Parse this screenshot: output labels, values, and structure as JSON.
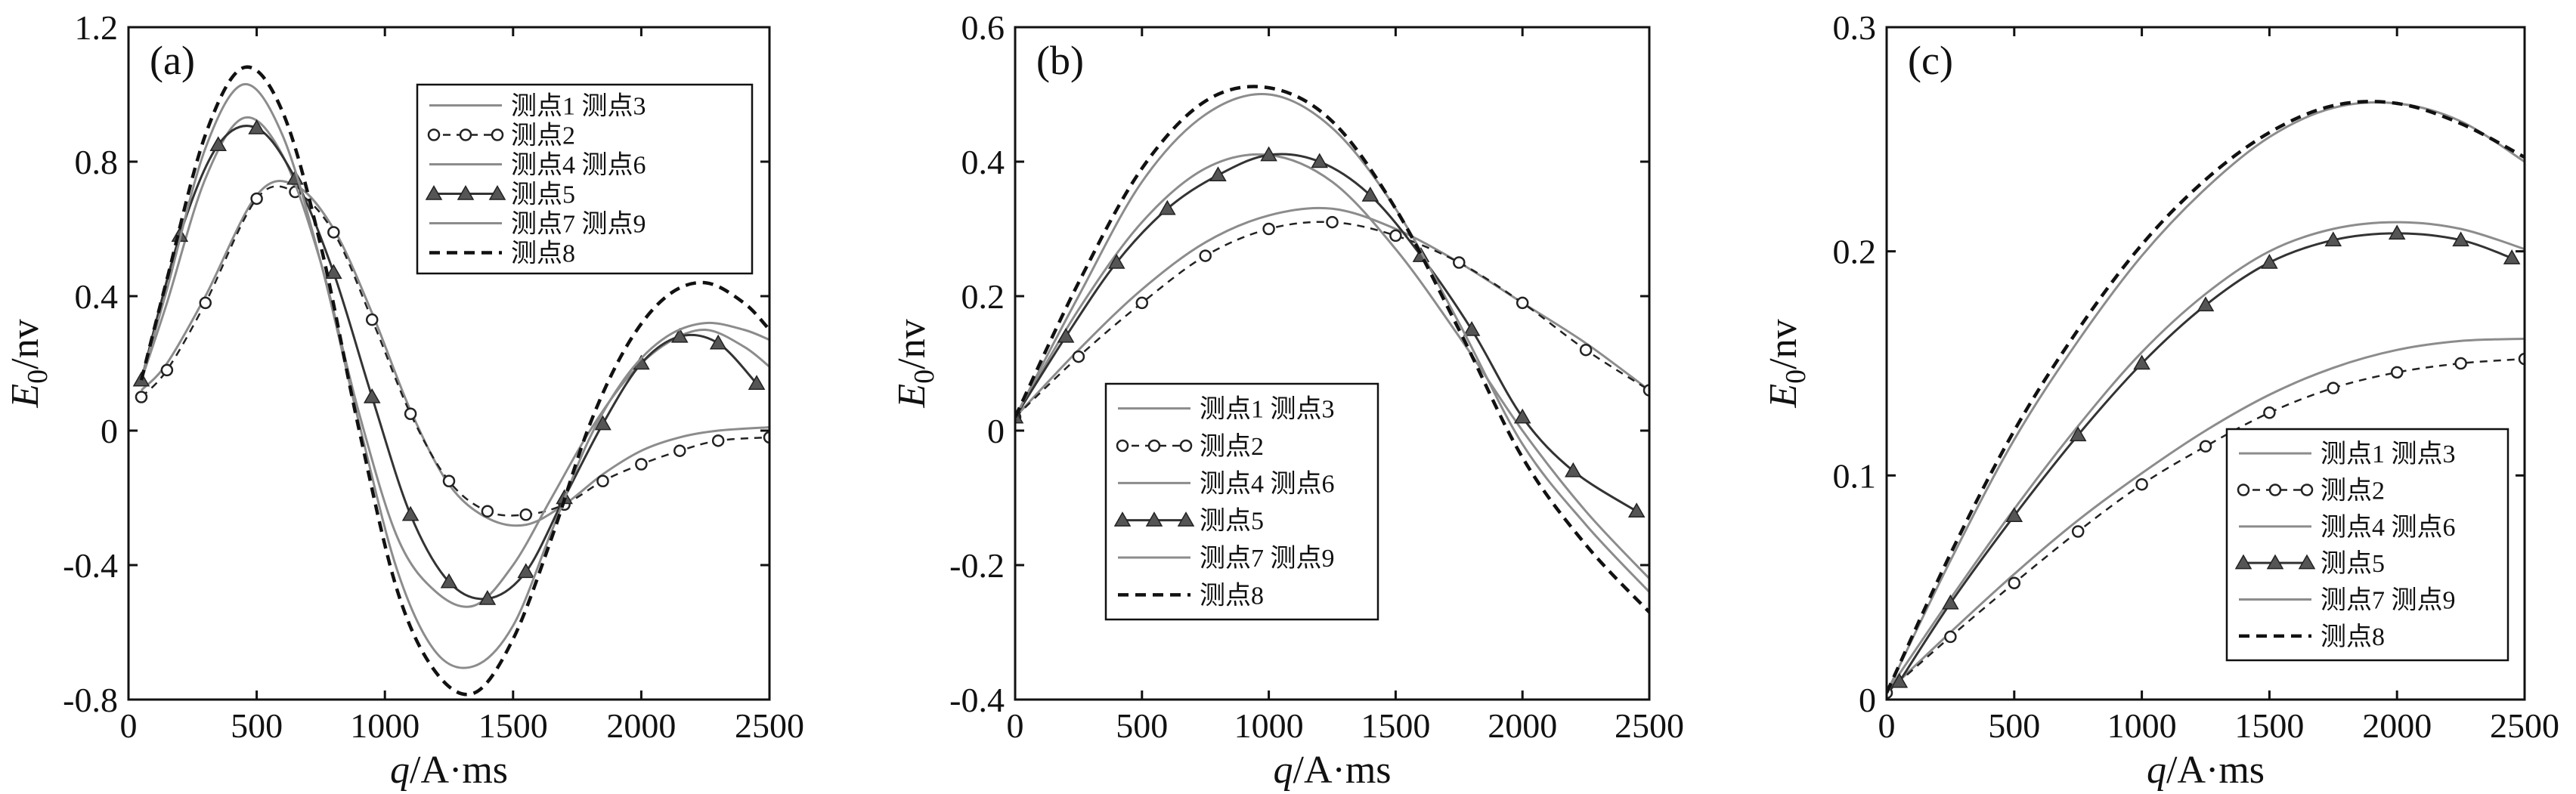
{
  "chart_data": [
    {
      "panel": "(a)",
      "type": "line",
      "xlabel": "q/A·ms",
      "ylabel": "E0/nv",
      "xlim": [
        0,
        2500
      ],
      "ylim": [
        -0.8,
        1.2
      ],
      "xticks": [
        "0",
        "500",
        "1000",
        "1500",
        "2000",
        "2500"
      ],
      "yticks": [
        "-0.8",
        "-0.4",
        "0",
        "0.4",
        "0.8",
        "1.2"
      ],
      "legend_position": "top-right",
      "series": [
        {
          "name": "测点1 测点3",
          "style": "solid-gray",
          "x": [
            50,
            150,
            300,
            500,
            650,
            800,
            950,
            1100,
            1250,
            1400,
            1550,
            1700,
            1850,
            2000,
            2150,
            2300,
            2500
          ],
          "y": [
            0.12,
            0.2,
            0.4,
            0.7,
            0.73,
            0.6,
            0.35,
            0.06,
            -0.16,
            -0.26,
            -0.28,
            -0.22,
            -0.13,
            -0.06,
            -0.02,
            0.0,
            0.01
          ]
        },
        {
          "name": "测点2",
          "style": "dashed-circles",
          "x": [
            50,
            150,
            300,
            500,
            650,
            800,
            950,
            1100,
            1250,
            1400,
            1550,
            1700,
            1850,
            2000,
            2150,
            2300,
            2500
          ],
          "y": [
            0.1,
            0.18,
            0.38,
            0.69,
            0.71,
            0.59,
            0.33,
            0.05,
            -0.15,
            -0.24,
            -0.25,
            -0.22,
            -0.15,
            -0.1,
            -0.06,
            -0.03,
            -0.02
          ]
        },
        {
          "name": "测点4 测点6",
          "style": "solid-gray",
          "x": [
            50,
            150,
            300,
            450,
            600,
            750,
            900,
            1050,
            1200,
            1350,
            1500,
            1650,
            1800,
            1950,
            2100,
            2250,
            2400,
            2500
          ],
          "y": [
            0.15,
            0.38,
            0.75,
            0.93,
            0.82,
            0.5,
            0.05,
            -0.32,
            -0.48,
            -0.52,
            -0.4,
            -0.2,
            0.0,
            0.16,
            0.26,
            0.3,
            0.25,
            0.19
          ]
        },
        {
          "name": "测点5",
          "style": "solid-triangles",
          "x": [
            50,
            200,
            350,
            500,
            650,
            800,
            950,
            1100,
            1250,
            1400,
            1550,
            1700,
            1850,
            2000,
            2150,
            2300,
            2450
          ],
          "y": [
            0.15,
            0.58,
            0.85,
            0.9,
            0.75,
            0.47,
            0.1,
            -0.25,
            -0.45,
            -0.5,
            -0.42,
            -0.2,
            0.02,
            0.2,
            0.28,
            0.26,
            0.14
          ]
        },
        {
          "name": "测点7 测点9",
          "style": "solid-gray",
          "x": [
            50,
            150,
            300,
            450,
            600,
            750,
            900,
            1050,
            1200,
            1350,
            1500,
            1650,
            1800,
            1950,
            2100,
            2250,
            2400,
            2500
          ],
          "y": [
            0.15,
            0.42,
            0.84,
            1.03,
            0.88,
            0.5,
            0.02,
            -0.42,
            -0.66,
            -0.7,
            -0.58,
            -0.3,
            -0.02,
            0.17,
            0.28,
            0.32,
            0.3,
            0.27
          ]
        },
        {
          "name": "测点8",
          "style": "dashed-black",
          "x": [
            50,
            150,
            300,
            450,
            600,
            750,
            900,
            1050,
            1200,
            1350,
            1500,
            1650,
            1800,
            1950,
            2100,
            2250,
            2400,
            2500
          ],
          "y": [
            0.15,
            0.45,
            0.88,
            1.08,
            0.95,
            0.55,
            0.0,
            -0.48,
            -0.72,
            -0.78,
            -0.62,
            -0.32,
            0.02,
            0.26,
            0.4,
            0.44,
            0.38,
            0.3
          ]
        }
      ]
    },
    {
      "panel": "(b)",
      "type": "line",
      "xlabel": "q/A·ms",
      "ylabel": "E0/nv",
      "xlim": [
        0,
        2500
      ],
      "ylim": [
        -0.4,
        0.6
      ],
      "xticks": [
        "0",
        "500",
        "1000",
        "1500",
        "2000",
        "2500"
      ],
      "yticks": [
        "-0.4",
        "-0.2",
        "0",
        "0.2",
        "0.4",
        "0.6"
      ],
      "legend_position": "bottom-center",
      "series": [
        {
          "name": "测点1 测点3",
          "style": "solid-gray",
          "x": [
            0,
            250,
            500,
            750,
            1000,
            1250,
            1500,
            1750,
            2000,
            2250,
            2500
          ],
          "y": [
            0.02,
            0.12,
            0.21,
            0.28,
            0.32,
            0.33,
            0.3,
            0.25,
            0.19,
            0.13,
            0.06
          ]
        },
        {
          "name": "测点2",
          "style": "dashed-circles",
          "x": [
            0,
            250,
            500,
            750,
            1000,
            1250,
            1500,
            1750,
            2000,
            2250,
            2500
          ],
          "y": [
            0.02,
            0.11,
            0.19,
            0.26,
            0.3,
            0.31,
            0.29,
            0.25,
            0.19,
            0.12,
            0.06
          ]
        },
        {
          "name": "测点4 测点6",
          "style": "solid-gray",
          "x": [
            0,
            250,
            500,
            750,
            1000,
            1250,
            1500,
            1750,
            2000,
            2250,
            2500
          ],
          "y": [
            0.02,
            0.18,
            0.31,
            0.39,
            0.41,
            0.37,
            0.27,
            0.14,
            0.0,
            -0.12,
            -0.22
          ]
        },
        {
          "name": "测点5",
          "style": "solid-triangles",
          "x": [
            0,
            200,
            400,
            600,
            800,
            1000,
            1200,
            1400,
            1600,
            1800,
            2000,
            2200,
            2450
          ],
          "y": [
            0.02,
            0.14,
            0.25,
            0.33,
            0.38,
            0.41,
            0.4,
            0.35,
            0.26,
            0.15,
            0.02,
            -0.06,
            -0.12
          ]
        },
        {
          "name": "测点7 测点9",
          "style": "solid-gray",
          "x": [
            0,
            250,
            500,
            750,
            1000,
            1250,
            1500,
            1750,
            2000,
            2250,
            2500
          ],
          "y": [
            0.02,
            0.2,
            0.37,
            0.47,
            0.5,
            0.45,
            0.33,
            0.16,
            -0.02,
            -0.14,
            -0.24
          ]
        },
        {
          "name": "测点8",
          "style": "dashed-black",
          "x": [
            0,
            250,
            500,
            750,
            1000,
            1250,
            1500,
            1750,
            2000,
            2250,
            2500
          ],
          "y": [
            0.02,
            0.22,
            0.39,
            0.49,
            0.51,
            0.46,
            0.33,
            0.15,
            -0.04,
            -0.17,
            -0.27
          ]
        }
      ]
    },
    {
      "panel": "(c)",
      "type": "line",
      "xlabel": "q/A·ms",
      "ylabel": "E0/nv",
      "xlim": [
        0,
        2500
      ],
      "ylim": [
        0,
        0.3
      ],
      "xticks": [
        "0",
        "500",
        "1000",
        "1500",
        "2000",
        "2500"
      ],
      "yticks": [
        "0",
        "0.1",
        "0.2",
        "0.3"
      ],
      "legend_position": "bottom-right",
      "series": [
        {
          "name": "测点1 测点3",
          "style": "solid-gray",
          "x": [
            0,
            250,
            500,
            750,
            1000,
            1250,
            1500,
            1750,
            2000,
            2250,
            2500
          ],
          "y": [
            0.003,
            0.03,
            0.056,
            0.08,
            0.101,
            0.12,
            0.136,
            0.148,
            0.156,
            0.16,
            0.161
          ]
        },
        {
          "name": "测点2",
          "style": "dashed-circles",
          "x": [
            0,
            250,
            500,
            750,
            1000,
            1250,
            1500,
            1750,
            2000,
            2250,
            2500
          ],
          "y": [
            0.003,
            0.028,
            0.052,
            0.075,
            0.096,
            0.113,
            0.128,
            0.139,
            0.146,
            0.15,
            0.152
          ]
        },
        {
          "name": "测点4 测点6",
          "style": "solid-gray",
          "x": [
            0,
            250,
            500,
            750,
            1000,
            1250,
            1500,
            1750,
            2000,
            2250,
            2500
          ],
          "y": [
            0.003,
            0.045,
            0.085,
            0.122,
            0.155,
            0.181,
            0.2,
            0.21,
            0.213,
            0.21,
            0.201
          ]
        },
        {
          "name": "测点5",
          "style": "solid-triangles",
          "x": [
            50,
            250,
            500,
            750,
            1000,
            1250,
            1500,
            1750,
            2000,
            2250,
            2450
          ],
          "y": [
            0.008,
            0.043,
            0.082,
            0.118,
            0.15,
            0.176,
            0.195,
            0.205,
            0.208,
            0.205,
            0.197
          ]
        },
        {
          "name": "测点7 测点9",
          "style": "solid-gray",
          "x": [
            0,
            250,
            500,
            750,
            1000,
            1250,
            1500,
            1750,
            2000,
            2250,
            2500
          ],
          "y": [
            0.003,
            0.062,
            0.116,
            0.16,
            0.198,
            0.228,
            0.251,
            0.264,
            0.266,
            0.258,
            0.24
          ]
        },
        {
          "name": "测点8",
          "style": "dashed-black",
          "x": [
            0,
            250,
            500,
            750,
            1000,
            1250,
            1500,
            1750,
            2000,
            2250,
            2500
          ],
          "y": [
            0.003,
            0.065,
            0.12,
            0.165,
            0.203,
            0.232,
            0.253,
            0.265,
            0.266,
            0.257,
            0.242
          ]
        }
      ]
    }
  ]
}
